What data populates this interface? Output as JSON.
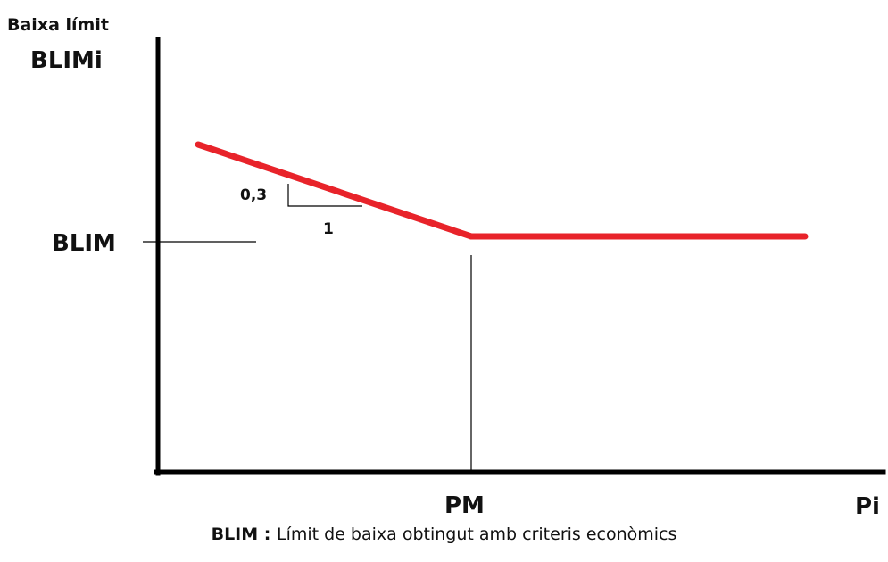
{
  "diagram": {
    "y_axis_title": "Baixa límit",
    "y_axis_variable": "BLIMi",
    "x_axis_variable": "Pi",
    "y_reference_label": "BLIM",
    "x_reference_label": "PM",
    "slope_rise_label": "0,3",
    "slope_run_label": "1",
    "line_color": "#e8232a",
    "axis_color": "#000000"
  },
  "caption": {
    "term": "BLIM",
    "separator": " : ",
    "definition": "Límit de baixa obtingut amb criteris econòmics"
  }
}
